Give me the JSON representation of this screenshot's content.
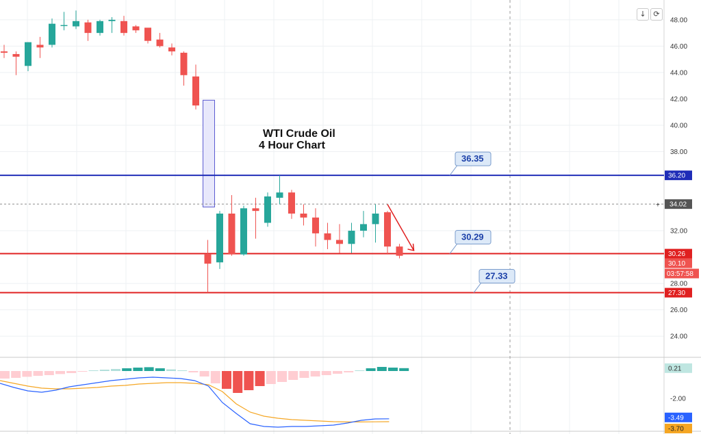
{
  "toolbar": {
    "scroll_icon": "down-arrow-icon",
    "reset_icon": "reset-icon",
    "scroll_glyph": "↓",
    "reset_glyph": "⟳"
  },
  "chart_data": {
    "type": "candlestick",
    "title_line1": "WTI Crude Oil",
    "title_line2": "4 Hour Chart",
    "price_axis": {
      "ticks": [
        "48.00",
        "46.00",
        "44.00",
        "42.00",
        "40.00",
        "38.00",
        "32.00",
        "28.00",
        "26.00",
        "24.00"
      ],
      "min": 22.5,
      "max": 49.5
    },
    "colors": {
      "up": "#26a69a",
      "down": "#ef5350",
      "resistance": "#1f2db8",
      "support": "#e02020",
      "macd": "#2962ff",
      "signal": "#f5a623"
    },
    "candles": [
      {
        "o": 45.6,
        "h": 46.1,
        "l": 45.1,
        "c": 45.5
      },
      {
        "o": 45.4,
        "h": 45.6,
        "l": 43.8,
        "c": 45.2
      },
      {
        "o": 44.5,
        "h": 46.3,
        "l": 44.1,
        "c": 46.3
      },
      {
        "o": 46.1,
        "h": 46.7,
        "l": 45.1,
        "c": 45.9
      },
      {
        "o": 46.1,
        "h": 48.1,
        "l": 45.9,
        "c": 47.7
      },
      {
        "o": 47.6,
        "h": 48.6,
        "l": 47.2,
        "c": 47.6
      },
      {
        "o": 47.5,
        "h": 48.7,
        "l": 47.3,
        "c": 47.9
      },
      {
        "o": 47.8,
        "h": 48.0,
        "l": 46.4,
        "c": 47.0
      },
      {
        "o": 47.0,
        "h": 48.0,
        "l": 46.8,
        "c": 47.9
      },
      {
        "o": 47.9,
        "h": 48.2,
        "l": 47.0,
        "c": 48.0
      },
      {
        "o": 47.9,
        "h": 48.3,
        "l": 46.8,
        "c": 47.0
      },
      {
        "o": 47.5,
        "h": 47.6,
        "l": 47.0,
        "c": 47.2
      },
      {
        "o": 47.4,
        "h": 47.4,
        "l": 46.2,
        "c": 46.4
      },
      {
        "o": 46.5,
        "h": 47.0,
        "l": 45.9,
        "c": 46.0
      },
      {
        "o": 45.9,
        "h": 46.2,
        "l": 45.3,
        "c": 45.6
      },
      {
        "o": 45.5,
        "h": 45.6,
        "l": 43.0,
        "c": 43.8
      },
      {
        "o": 43.7,
        "h": 44.6,
        "l": 41.2,
        "c": 41.5
      },
      {
        "o": 30.2,
        "h": 31.3,
        "l": 27.3,
        "c": 29.5
      },
      {
        "o": 29.6,
        "h": 33.5,
        "l": 29.1,
        "c": 33.3
      },
      {
        "o": 33.3,
        "h": 34.7,
        "l": 30.1,
        "c": 30.2
      },
      {
        "o": 30.2,
        "h": 33.9,
        "l": 30.1,
        "c": 33.7
      },
      {
        "o": 33.7,
        "h": 34.5,
        "l": 31.4,
        "c": 33.5
      },
      {
        "o": 32.6,
        "h": 34.9,
        "l": 32.3,
        "c": 34.6
      },
      {
        "o": 34.5,
        "h": 36.2,
        "l": 34.0,
        "c": 34.9
      },
      {
        "o": 34.9,
        "h": 35.1,
        "l": 32.9,
        "c": 33.3
      },
      {
        "o": 33.3,
        "h": 34.0,
        "l": 32.4,
        "c": 33.0
      },
      {
        "o": 33.0,
        "h": 33.7,
        "l": 30.8,
        "c": 31.8
      },
      {
        "o": 31.8,
        "h": 32.6,
        "l": 30.6,
        "c": 31.3
      },
      {
        "o": 31.3,
        "h": 32.5,
        "l": 30.3,
        "c": 31.0
      },
      {
        "o": 31.0,
        "h": 32.6,
        "l": 30.3,
        "c": 32.0
      },
      {
        "o": 32.0,
        "h": 33.5,
        "l": 31.5,
        "c": 32.5
      },
      {
        "o": 32.5,
        "h": 34.0,
        "l": 31.1,
        "c": 33.3
      },
      {
        "o": 33.4,
        "h": 33.5,
        "l": 30.2,
        "c": 30.8
      },
      {
        "o": 30.8,
        "h": 31.0,
        "l": 29.9,
        "c": 30.1
      }
    ],
    "gap_box": {
      "from": 41.9,
      "to": 33.8
    },
    "levels": [
      {
        "name": "resistance",
        "price": 36.2,
        "tag": "36.20",
        "color": "#1f2db8",
        "callout": "36.35"
      },
      {
        "name": "support-upper",
        "price": 30.26,
        "tag": "30.26",
        "color": "#e02020",
        "callout": "30.29"
      },
      {
        "name": "support-lower",
        "price": 27.3,
        "tag": "27.30",
        "color": "#e02020",
        "callout": "27.33"
      }
    ],
    "crosshair": {
      "price": 34.02,
      "tag": "34.02"
    },
    "last_price": {
      "tag": "30.10",
      "countdown": "03:57:58"
    },
    "arrow": {
      "from": {
        "i": 32,
        "p": 34.0
      },
      "to": {
        "i": 34.2,
        "p": 30.5
      }
    },
    "macd": {
      "axis_ticks": [
        "-2.00"
      ],
      "min": -4.3,
      "max": 0.9,
      "histogram": [
        -0.55,
        -0.5,
        -0.42,
        -0.35,
        -0.3,
        -0.22,
        -0.15,
        -0.05,
        0.05,
        0.1,
        0.15,
        0.2,
        0.25,
        0.28,
        0.2,
        0.12,
        0.05,
        -0.1,
        -0.4,
        -0.9,
        -1.3,
        -1.6,
        -1.4,
        -1.1,
        -0.95,
        -0.8,
        -0.65,
        -0.5,
        -0.4,
        -0.3,
        -0.2,
        -0.1,
        0.05,
        0.2,
        0.3,
        0.25,
        0.21
      ],
      "macd_line": [
        -0.9,
        -1.2,
        -1.45,
        -1.55,
        -1.4,
        -1.15,
        -1.0,
        -0.85,
        -0.7,
        -0.6,
        -0.5,
        -0.45,
        -0.5,
        -0.55,
        -0.7,
        -1.1,
        -2.3,
        -3.1,
        -3.85,
        -4.05,
        -4.1,
        -4.05,
        -4.05,
        -4.0,
        -3.95,
        -3.8,
        -3.6,
        -3.5,
        -3.49
      ],
      "signal_line": [
        -0.7,
        -0.9,
        -1.1,
        -1.25,
        -1.3,
        -1.3,
        -1.25,
        -1.2,
        -1.1,
        -1.05,
        -0.95,
        -0.9,
        -0.85,
        -0.85,
        -0.9,
        -1.0,
        -1.5,
        -2.4,
        -3.0,
        -3.3,
        -3.45,
        -3.55,
        -3.6,
        -3.65,
        -3.7,
        -3.72,
        -3.72,
        -3.71,
        -3.7
      ],
      "tags": [
        {
          "name": "histogram-tag",
          "value": "0.21",
          "bg": "#bfe6e1",
          "fg": "#333333"
        },
        {
          "name": "macd-tag",
          "value": "-3.49",
          "bg": "#2962ff",
          "fg": "#ffffff"
        },
        {
          "name": "signal-tag",
          "value": "-3.70",
          "bg": "#f5a623",
          "fg": "#222222"
        }
      ]
    }
  }
}
